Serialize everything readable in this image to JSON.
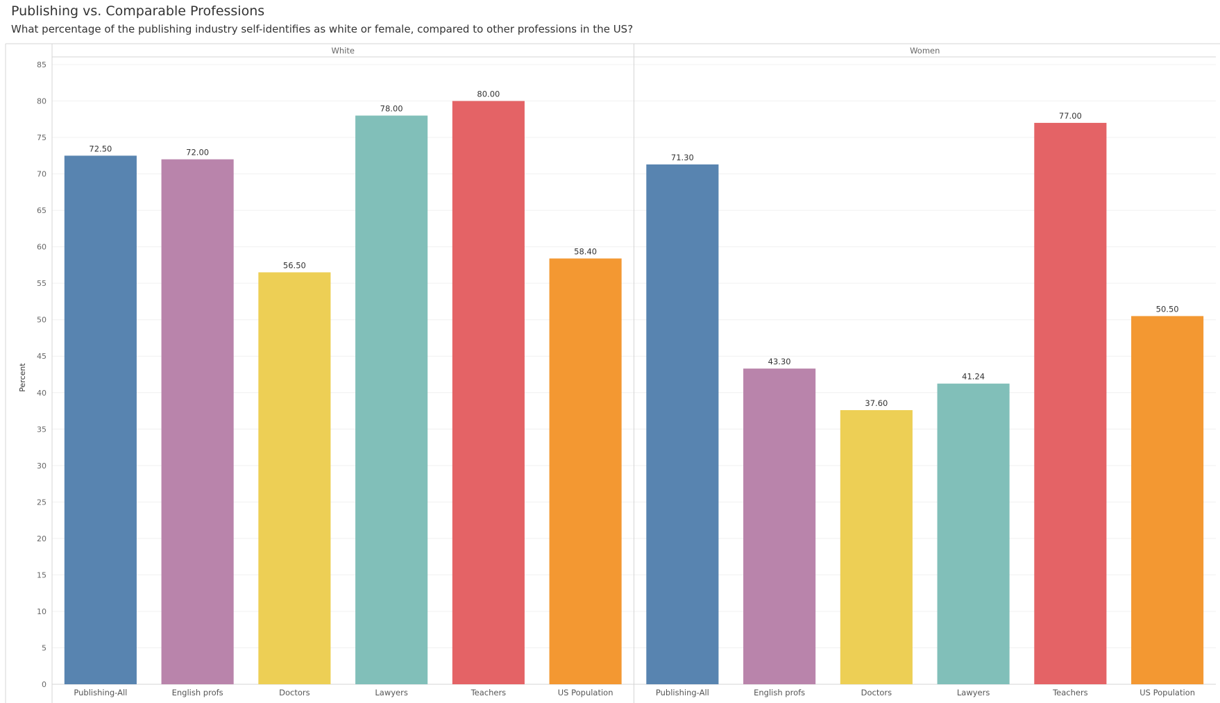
{
  "header": {
    "title": "Publishing vs. Comparable Professions",
    "subtitle": "What percentage of the publishing industry self-identifies as white or female, compared to other professions in the US?"
  },
  "colors": {
    "Publishing-All": "#5884b0",
    "English profs": "#b984ab",
    "Doctors": "#edcf55",
    "Lawyers": "#81bfb9",
    "Teachers": "#e46366",
    "US Population": "#f39832"
  },
  "chart_data": {
    "type": "bar",
    "ylabel": "Percent",
    "ylim": [
      0,
      85
    ],
    "yticks": [
      0,
      5,
      10,
      15,
      20,
      25,
      30,
      35,
      40,
      45,
      50,
      55,
      60,
      65,
      70,
      75,
      80,
      85
    ],
    "grid": true,
    "categories": [
      "Publishing-All",
      "English profs",
      "Doctors",
      "Lawyers",
      "Teachers",
      "US Population"
    ],
    "panels": [
      {
        "name": "White",
        "values": [
          72.5,
          72.0,
          56.5,
          78.0,
          80.0,
          58.4
        ],
        "labels": [
          "72.50",
          "72.00",
          "56.50",
          "78.00",
          "80.00",
          "58.40"
        ]
      },
      {
        "name": "Women",
        "values": [
          71.3,
          43.3,
          37.6,
          41.24,
          77.0,
          50.5
        ],
        "labels": [
          "71.30",
          "43.30",
          "37.60",
          "41.24",
          "77.00",
          "50.50"
        ]
      }
    ]
  }
}
